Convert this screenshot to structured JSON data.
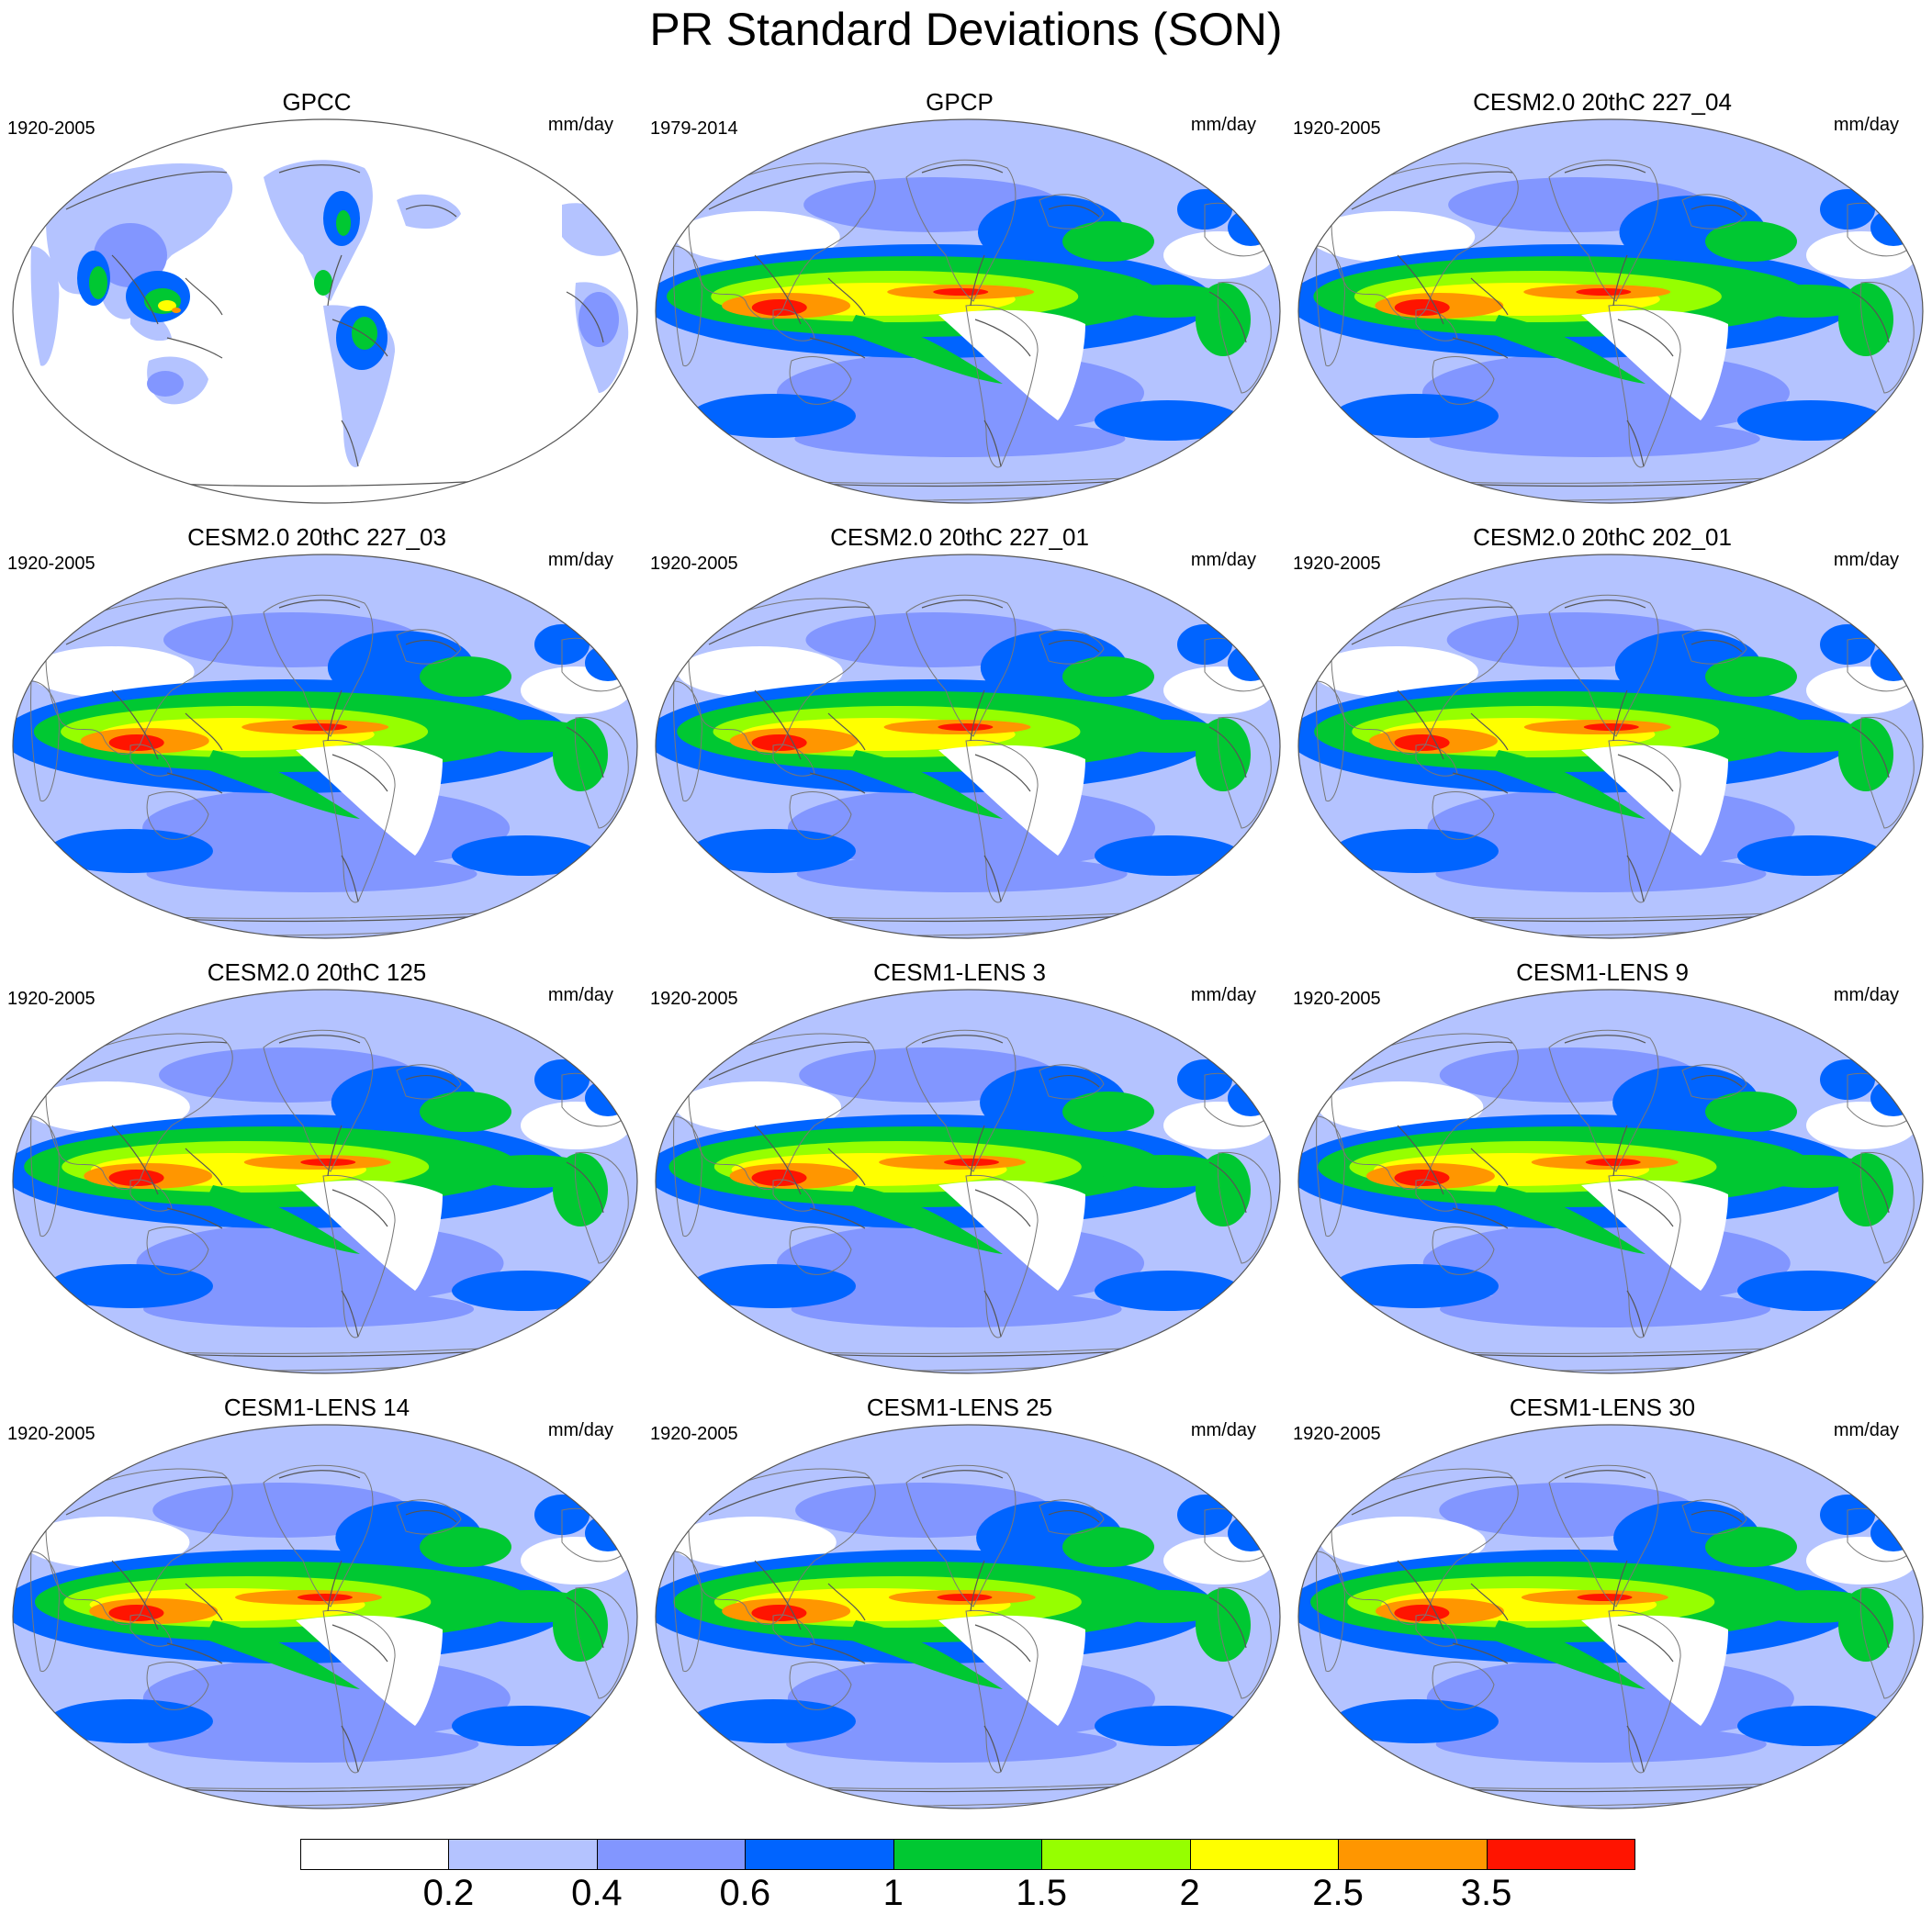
{
  "title": "PR Standard Deviations (SON)",
  "panels": [
    {
      "title": "GPCC",
      "period": "1920-2005",
      "units": "mm/day",
      "land_only": true
    },
    {
      "title": "GPCP",
      "period": "1979-2014",
      "units": "mm/day"
    },
    {
      "title": "CESM2.0 20thC 227_04",
      "period": "1920-2005",
      "units": "mm/day"
    },
    {
      "title": "CESM2.0 20thC 227_03",
      "period": "1920-2005",
      "units": "mm/day"
    },
    {
      "title": "CESM2.0 20thC 227_01",
      "period": "1920-2005",
      "units": "mm/day"
    },
    {
      "title": "CESM2.0 20thC 202_01",
      "period": "1920-2005",
      "units": "mm/day"
    },
    {
      "title": "CESM2.0 20thC 125",
      "period": "1920-2005",
      "units": "mm/day"
    },
    {
      "title": "CESM1-LENS 3",
      "period": "1920-2005",
      "units": "mm/day"
    },
    {
      "title": "CESM1-LENS 9",
      "period": "1920-2005",
      "units": "mm/day"
    },
    {
      "title": "CESM1-LENS 14",
      "period": "1920-2005",
      "units": "mm/day"
    },
    {
      "title": "CESM1-LENS 25",
      "period": "1920-2005",
      "units": "mm/day"
    },
    {
      "title": "CESM1-LENS 30",
      "period": "1920-2005",
      "units": "mm/day"
    }
  ],
  "colorbar": {
    "colors": [
      "#ffffff",
      "#b4c3ff",
      "#8296ff",
      "#0064ff",
      "#00c832",
      "#96ff00",
      "#ffff00",
      "#ff9600",
      "#ff1400"
    ],
    "labels": [
      "0.2",
      "0.4",
      "0.6",
      "1",
      "1.5",
      "2",
      "2.5",
      "3.5"
    ]
  }
}
